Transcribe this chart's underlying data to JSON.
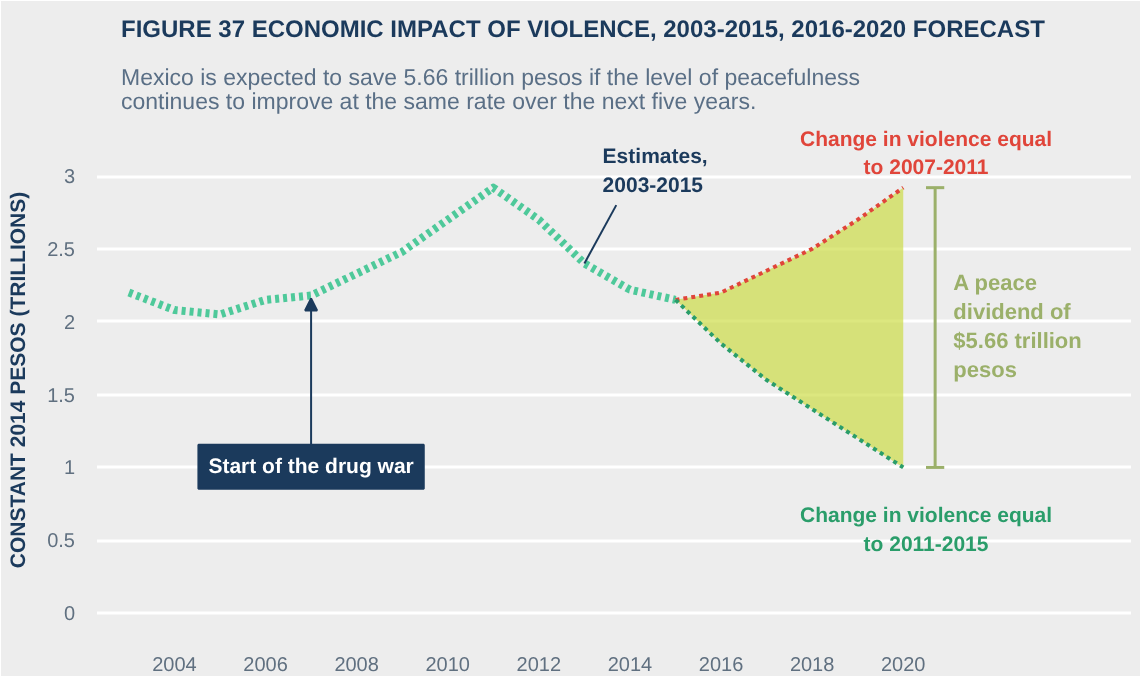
{
  "chart_data": {
    "type": "line",
    "title": "FIGURE 37  ECONOMIC IMPACT OF VIOLENCE, 2003-2015, 2016-2020 FORECAST",
    "subtitle": "Mexico is expected to save 5.66 trillion pesos if the level of peacefulness continues to improve at the same rate over the next five years.",
    "ylabel": "CONSTANT 2014 PESOS (TRILLIONS)",
    "xlim": [
      2002.3,
      2025
    ],
    "xticks": [
      2004,
      2006,
      2008,
      2010,
      2012,
      2014,
      2016,
      2018,
      2020
    ],
    "ylim": [
      -0.15,
      3.35
    ],
    "yticks": [
      0,
      0.5,
      1,
      1.5,
      2,
      2.5,
      3
    ],
    "grid": "y",
    "marker": "none",
    "line_style": "dotted",
    "series": [
      {
        "name": "Estimates, 2003-2015",
        "color": "#4ec99a",
        "x": [
          2003,
          2004,
          2005,
          2006,
          2007,
          2008,
          2009,
          2010,
          2011,
          2012,
          2013,
          2014,
          2015
        ],
        "values": [
          2.2,
          2.08,
          2.05,
          2.15,
          2.18,
          2.33,
          2.48,
          2.7,
          2.92,
          2.7,
          2.4,
          2.22,
          2.15
        ]
      },
      {
        "name": "Change in violence equal to 2007-2011",
        "color": "#e0453a",
        "x": [
          2015,
          2016,
          2017,
          2018,
          2019,
          2020
        ],
        "values": [
          2.15,
          2.2,
          2.35,
          2.5,
          2.7,
          2.92
        ],
        "lower": [
          2.15,
          1.85,
          1.6,
          1.4,
          1.2,
          1.0
        ],
        "upper": [
          2.15,
          2.2,
          2.35,
          2.5,
          2.7,
          2.92
        ]
      },
      {
        "name": "Change in violence equal to 2011-2015",
        "color": "#2a9d6a",
        "x": [
          2015,
          2016,
          2017,
          2018,
          2019,
          2020
        ],
        "values": [
          2.15,
          1.85,
          1.6,
          1.4,
          1.2,
          1.0
        ]
      }
    ],
    "annotations": [
      {
        "text": "Start of the drug war",
        "x": 2007,
        "y": 2.18
      },
      "A peace dividend of $5.66 trillion pesos"
    ]
  }
}
